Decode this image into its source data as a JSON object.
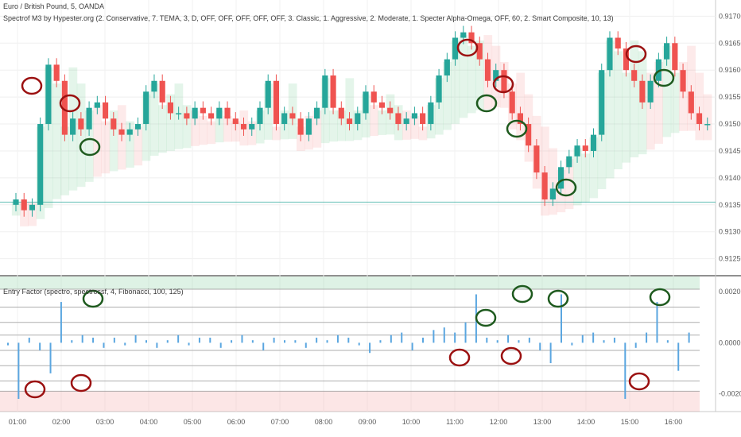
{
  "header": {
    "title": "Euro / British Pound, 5, OANDA",
    "indicator": "Spectrof M3 by Hypester.org (2. Conservative, 7. TEMA, 3, D, OFF, OFF, OFF, OFF, OFF, 3. Classic, 1. Aggressive, 2. Moderate, 1. Specter Alpha-Omega, OFF, 60, 2. Smart Composite, 10, 13)"
  },
  "lower_pane": {
    "indicator": "Entry Factor (spectro, spectrossf, 4, Fibonacci, 100, 125)"
  },
  "colors": {
    "up": "#26a69a",
    "down": "#ef5350",
    "osc_bar": "#5aa6e0",
    "bull_band": "#6bc58a",
    "bear_band": "#f28b8b",
    "annotation_red": "#9b1010",
    "annotation_green": "#1e5a1e"
  },
  "chart_data": [
    {
      "type": "candlestick",
      "title": "Euro / British Pound, 5, OANDA",
      "x": [
        "01:00",
        "02:00",
        "03:00",
        "04:00",
        "05:00",
        "06:00",
        "07:00",
        "08:00",
        "09:00",
        "10:00",
        "11:00",
        "12:00",
        "13:00",
        "14:00",
        "15:00",
        "16:00"
      ],
      "ylim": [
        0.9122,
        0.9173
      ],
      "yticks": [
        "0.91750",
        "0.91700",
        "0.91650",
        "0.91600",
        "0.91550",
        "0.91500",
        "0.91450",
        "0.91400",
        "0.91350",
        "0.91300",
        "0.91250"
      ],
      "close_path": [
        0.9136,
        0.9134,
        0.9135,
        0.915,
        0.9161,
        0.9158,
        0.9148,
        0.9151,
        0.9149,
        0.9153,
        0.9154,
        0.9151,
        0.9149,
        0.9148,
        0.9149,
        0.915,
        0.9156,
        0.9158,
        0.9154,
        0.9152,
        0.9152,
        0.9151,
        0.9153,
        0.9152,
        0.9151,
        0.9153,
        0.9151,
        0.915,
        0.9149,
        0.915,
        0.9153,
        0.9158,
        0.915,
        0.9152,
        0.9151,
        0.9148,
        0.9151,
        0.9153,
        0.9159,
        0.9153,
        0.9151,
        0.915,
        0.9152,
        0.9156,
        0.9154,
        0.9153,
        0.9152,
        0.915,
        0.9151,
        0.9152,
        0.915,
        0.9154,
        0.9159,
        0.9162,
        0.9166,
        0.9167,
        0.9165,
        0.9162,
        0.9158,
        0.916,
        0.9156,
        0.9152,
        0.915,
        0.9146,
        0.9141,
        0.9136,
        0.9138,
        0.9142,
        0.9144,
        0.9146,
        0.9145,
        0.9148,
        0.916,
        0.9166,
        0.9164,
        0.916,
        0.9158,
        0.9154,
        0.9158,
        0.9162,
        0.9165,
        0.916,
        0.9156,
        0.9152,
        0.915,
        0.915
      ],
      "price_line": 0.91355
    },
    {
      "type": "bar",
      "title": "Entry Factor (spectro, spectrossf, 4, Fibonacci, 100, 125)",
      "ylim": [
        -0.0027,
        0.0026
      ],
      "yticks": [
        "0.0020",
        "0.0000",
        "-0.0020"
      ],
      "values": [
        -0.0001,
        -0.0022,
        0.0002,
        -0.0003,
        -0.0012,
        0.0016,
        0.0001,
        0.0003,
        0.0002,
        -0.0002,
        0.0002,
        -0.0001,
        0.0003,
        0.0001,
        -0.0002,
        0.0001,
        0.0003,
        -0.0001,
        0.0002,
        0.0002,
        -0.0002,
        0.0001,
        0.0003,
        0.0001,
        -0.0003,
        0.0002,
        0.0001,
        0.0001,
        -0.0002,
        0.0002,
        0.0001,
        0.0003,
        0.0002,
        -0.0001,
        -0.0004,
        0.0001,
        0.0003,
        0.0004,
        -0.0003,
        0.0002,
        0.0005,
        0.0006,
        0.0004,
        0.0008,
        0.0019,
        0.0002,
        0.0001,
        0.0003,
        0.0001,
        0.0002,
        -0.0003,
        -0.0008,
        0.0019,
        -0.0001,
        0.0003,
        0.0004,
        0.0001,
        0.0002,
        -0.0022,
        -0.0002,
        0.0004,
        0.0016,
        0.0001,
        -0.0011,
        0.0004
      ]
    }
  ]
}
